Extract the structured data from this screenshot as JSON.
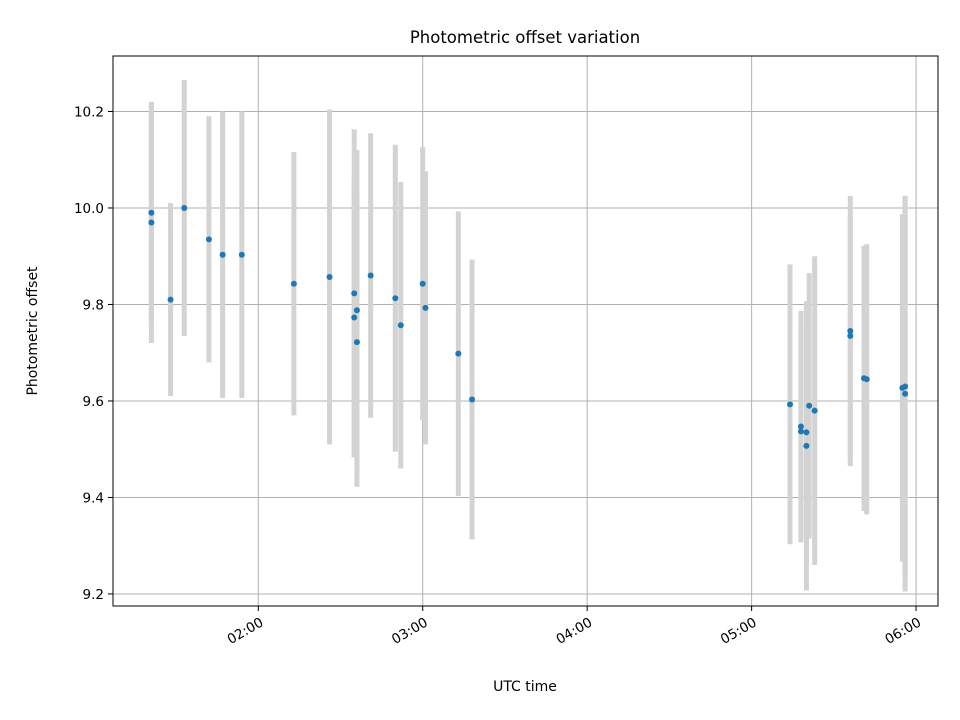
{
  "chart_data": {
    "type": "scatter",
    "title": "Photometric offset variation",
    "xlabel": "UTC time",
    "ylabel": "Photometric offset",
    "x_unit": "UTC time (HH:MM)",
    "xlim": [
      "01:07",
      "06:08"
    ],
    "ylim": [
      9.175,
      10.315
    ],
    "grid": true,
    "xticks": [
      "02:00",
      "03:00",
      "04:00",
      "05:00",
      "06:00"
    ],
    "yticks": [
      9.2,
      9.4,
      9.6,
      9.8,
      10.0,
      10.2
    ],
    "marker_color": "#1f77b4",
    "errorbar_color": "#d3d3d3",
    "points": [
      {
        "x": "01:21",
        "y": 9.99,
        "yerr": 0.23
      },
      {
        "x": "01:21",
        "y": 9.97,
        "yerr": 0.25
      },
      {
        "x": "01:28",
        "y": 9.81,
        "yerr": 0.2
      },
      {
        "x": "01:33",
        "y": 10.0,
        "yerr": 0.265
      },
      {
        "x": "01:42",
        "y": 9.935,
        "yerr": 0.255
      },
      {
        "x": "01:47",
        "y": 9.903,
        "yerr": 0.297
      },
      {
        "x": "01:54",
        "y": 9.903,
        "yerr": 0.297
      },
      {
        "x": "02:13",
        "y": 9.843,
        "yerr": 0.273
      },
      {
        "x": "02:26",
        "y": 9.857,
        "yerr": 0.347
      },
      {
        "x": "02:35",
        "y": 9.823,
        "yerr": 0.34
      },
      {
        "x": "02:35",
        "y": 9.773,
        "yerr": 0.29
      },
      {
        "x": "02:36",
        "y": 9.788,
        "yerr": 0.332
      },
      {
        "x": "02:36",
        "y": 9.722,
        "yerr": 0.3
      },
      {
        "x": "02:41",
        "y": 9.86,
        "yerr": 0.295
      },
      {
        "x": "02:50",
        "y": 9.813,
        "yerr": 0.318
      },
      {
        "x": "02:52",
        "y": 9.757,
        "yerr": 0.297
      },
      {
        "x": "03:00",
        "y": 9.843,
        "yerr": 0.283
      },
      {
        "x": "03:01",
        "y": 9.793,
        "yerr": 0.283
      },
      {
        "x": "03:13",
        "y": 9.698,
        "yerr": 0.295
      },
      {
        "x": "03:18",
        "y": 9.603,
        "yerr": 0.29
      },
      {
        "x": "05:14",
        "y": 9.593,
        "yerr": 0.29
      },
      {
        "x": "05:18",
        "y": 9.537,
        "yerr": 0.21
      },
      {
        "x": "05:18",
        "y": 9.547,
        "yerr": 0.24
      },
      {
        "x": "05:20",
        "y": 9.507,
        "yerr": 0.3
      },
      {
        "x": "05:20",
        "y": 9.535,
        "yerr": 0.27
      },
      {
        "x": "05:21",
        "y": 9.59,
        "yerr": 0.275
      },
      {
        "x": "05:23",
        "y": 9.58,
        "yerr": 0.32
      },
      {
        "x": "05:36",
        "y": 9.745,
        "yerr": 0.28
      },
      {
        "x": "05:36",
        "y": 9.735,
        "yerr": 0.25
      },
      {
        "x": "05:41",
        "y": 9.647,
        "yerr": 0.275
      },
      {
        "x": "05:42",
        "y": 9.645,
        "yerr": 0.28
      },
      {
        "x": "05:55",
        "y": 9.627,
        "yerr": 0.36
      },
      {
        "x": "05:56",
        "y": 9.63,
        "yerr": 0.395
      },
      {
        "x": "05:56",
        "y": 9.615,
        "yerr": 0.41
      }
    ]
  }
}
